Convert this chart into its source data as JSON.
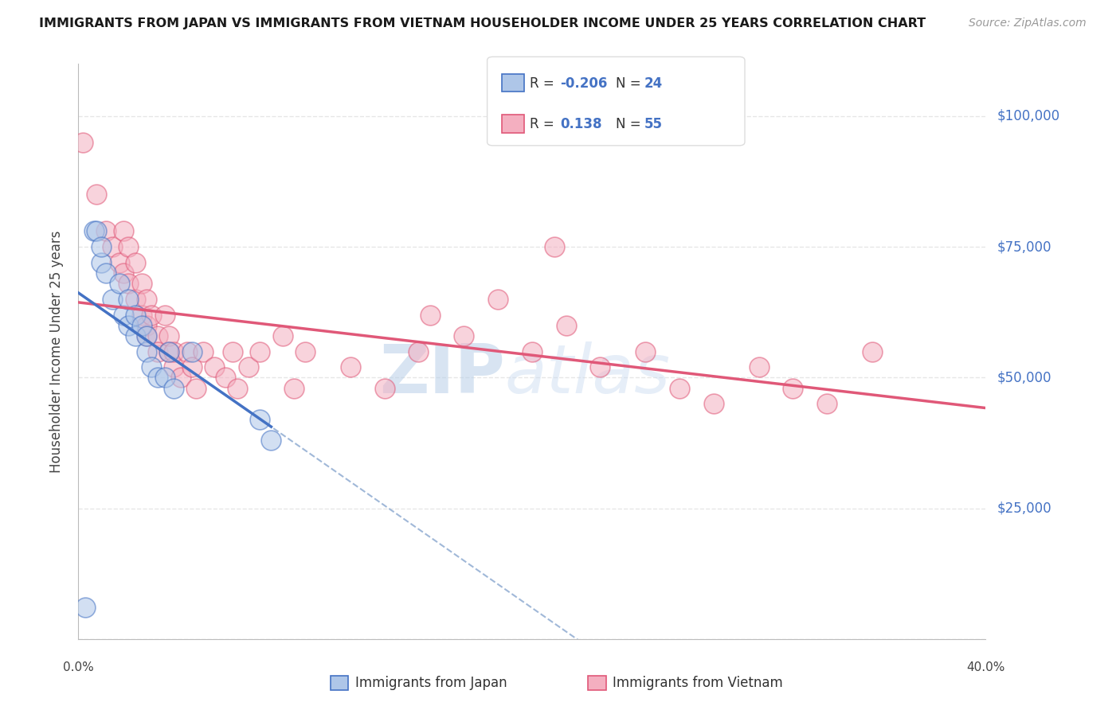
{
  "title": "IMMIGRANTS FROM JAPAN VS IMMIGRANTS FROM VIETNAM HOUSEHOLDER INCOME UNDER 25 YEARS CORRELATION CHART",
  "source": "Source: ZipAtlas.com",
  "ylabel": "Householder Income Under 25 years",
  "xmin": 0.0,
  "xmax": 0.4,
  "ymin": 0,
  "ymax": 110000,
  "yticks": [
    0,
    25000,
    50000,
    75000,
    100000
  ],
  "ytick_labels": [
    "",
    "$25,000",
    "$50,000",
    "$75,000",
    "$100,000"
  ],
  "xticks": [
    0.0,
    0.05,
    0.1,
    0.15,
    0.2,
    0.25,
    0.3,
    0.35,
    0.4
  ],
  "japan_r": -0.206,
  "japan_n": 24,
  "vietnam_r": 0.138,
  "vietnam_n": 55,
  "japan_color": "#aec6e8",
  "vietnam_color": "#f4afc0",
  "japan_line_color": "#4472c4",
  "vietnam_line_color": "#e05878",
  "trend_dashed_color": "#a0b8d8",
  "background_color": "#ffffff",
  "grid_color": "#e0e0e0",
  "japan_x": [
    0.003,
    0.007,
    0.008,
    0.01,
    0.01,
    0.012,
    0.015,
    0.018,
    0.02,
    0.022,
    0.022,
    0.025,
    0.025,
    0.028,
    0.03,
    0.03,
    0.032,
    0.035,
    0.038,
    0.04,
    0.042,
    0.05,
    0.08,
    0.085
  ],
  "japan_y": [
    6000,
    78000,
    78000,
    72000,
    75000,
    70000,
    65000,
    68000,
    62000,
    60000,
    65000,
    58000,
    62000,
    60000,
    55000,
    58000,
    52000,
    50000,
    50000,
    55000,
    48000,
    55000,
    42000,
    38000
  ],
  "vietnam_x": [
    0.002,
    0.008,
    0.012,
    0.015,
    0.018,
    0.02,
    0.02,
    0.022,
    0.022,
    0.025,
    0.025,
    0.028,
    0.028,
    0.03,
    0.03,
    0.03,
    0.032,
    0.035,
    0.035,
    0.038,
    0.04,
    0.04,
    0.042,
    0.042,
    0.045,
    0.048,
    0.05,
    0.052,
    0.055,
    0.06,
    0.065,
    0.068,
    0.07,
    0.075,
    0.08,
    0.09,
    0.095,
    0.1,
    0.12,
    0.135,
    0.15,
    0.155,
    0.17,
    0.185,
    0.2,
    0.21,
    0.215,
    0.23,
    0.25,
    0.265,
    0.28,
    0.3,
    0.315,
    0.33,
    0.35
  ],
  "vietnam_y": [
    95000,
    85000,
    78000,
    75000,
    72000,
    78000,
    70000,
    75000,
    68000,
    72000,
    65000,
    68000,
    62000,
    65000,
    60000,
    58000,
    62000,
    58000,
    55000,
    62000,
    55000,
    58000,
    52000,
    55000,
    50000,
    55000,
    52000,
    48000,
    55000,
    52000,
    50000,
    55000,
    48000,
    52000,
    55000,
    58000,
    48000,
    55000,
    52000,
    48000,
    55000,
    62000,
    58000,
    65000,
    55000,
    75000,
    60000,
    52000,
    55000,
    48000,
    45000,
    52000,
    48000,
    45000,
    55000
  ],
  "watermark_zip": "ZIP",
  "watermark_atlas": "atlas",
  "legend_japan_r_text": "R = ",
  "legend_japan_r_val": "-0.206",
  "legend_japan_n_text": "N = ",
  "legend_japan_n_val": "24",
  "legend_vietnam_r_text": "R = ",
  "legend_vietnam_r_val": "0.138",
  "legend_vietnam_n_text": "N = ",
  "legend_vietnam_n_val": "55",
  "bottom_label_japan": "Immigrants from Japan",
  "bottom_label_vietnam": "Immigrants from Vietnam"
}
